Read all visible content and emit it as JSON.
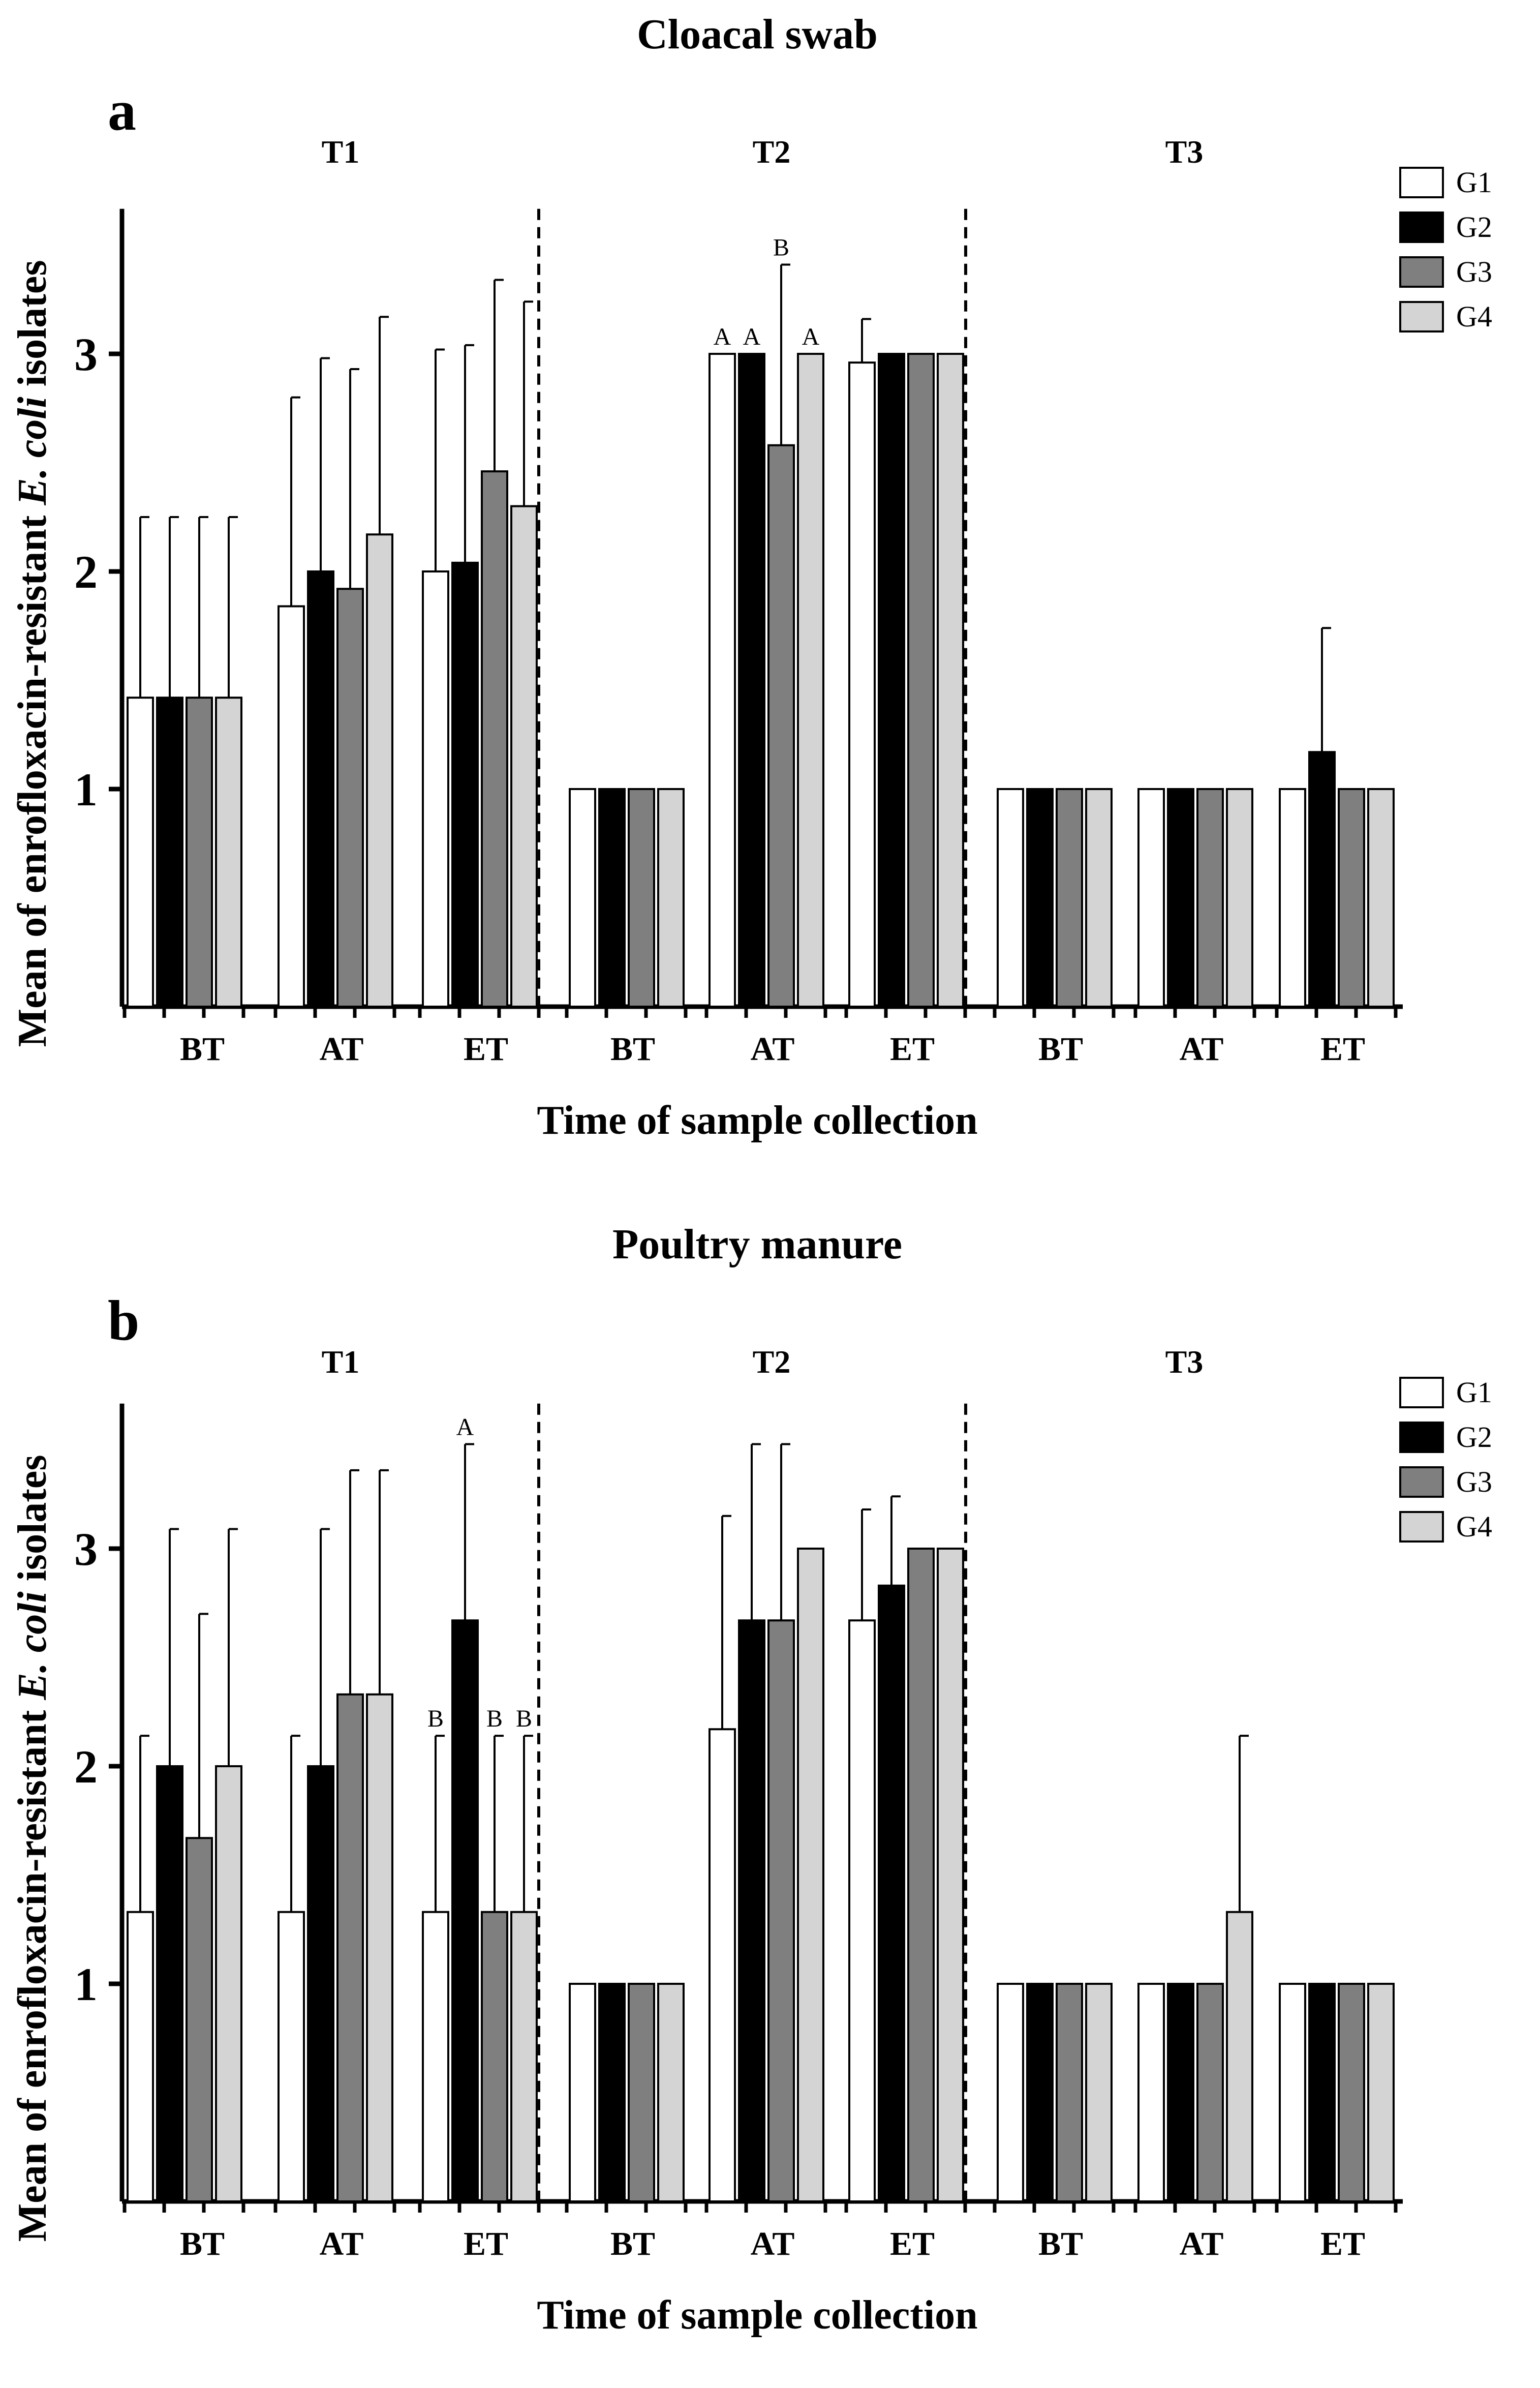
{
  "figure": {
    "ylabel_prefix": "Mean of enrofloxacin-resistant ",
    "ylabel_italic": "E. coli",
    "ylabel_suffix": " isolates"
  },
  "chart_data": [
    {
      "type": "bar",
      "letter": "a",
      "title": "Cloacal swab",
      "xlabel": "Time of sample collection",
      "ylabel": "Mean of enrofloxacin-resistant E. coli isolates",
      "ylim": [
        0,
        3.9
      ],
      "yticks": [
        1,
        2,
        3
      ],
      "grid": false,
      "legend_position": "top-right",
      "trials": [
        "T1",
        "T2",
        "T3"
      ],
      "categories": [
        "BT",
        "AT",
        "ET",
        "BT",
        "AT",
        "ET",
        "BT",
        "AT",
        "ET"
      ],
      "series": [
        {
          "name": "G1",
          "color": "#ffffff",
          "values": [
            1.42,
            1.84,
            2.0,
            1.0,
            3.0,
            2.96,
            1.0,
            1.0,
            1.0
          ],
          "errors": [
            0.83,
            0.96,
            1.02,
            0,
            0,
            0.2,
            0,
            0,
            0
          ],
          "labels": [
            "",
            "",
            "",
            "",
            "A",
            "",
            "",
            "",
            ""
          ]
        },
        {
          "name": "G2",
          "color": "#000000",
          "values": [
            1.42,
            2.0,
            2.04,
            1.0,
            3.0,
            3.0,
            1.0,
            1.0,
            1.17
          ],
          "errors": [
            0.83,
            0.98,
            1.0,
            0,
            0,
            0,
            0,
            0,
            0.57
          ],
          "labels": [
            "",
            "",
            "",
            "",
            "A",
            "",
            "",
            "",
            ""
          ]
        },
        {
          "name": "G3",
          "color": "#7f7f7f",
          "values": [
            1.42,
            1.92,
            2.46,
            1.0,
            2.58,
            3.0,
            1.0,
            1.0,
            1.0
          ],
          "errors": [
            0.83,
            1.01,
            0.88,
            0,
            0.83,
            0,
            0,
            0,
            0
          ],
          "labels": [
            "",
            "",
            "",
            "",
            "B",
            "",
            "",
            "",
            ""
          ]
        },
        {
          "name": "G4",
          "color": "#d4d4d4",
          "values": [
            1.42,
            2.17,
            2.3,
            1.0,
            3.0,
            3.0,
            1.0,
            1.0,
            1.0
          ],
          "errors": [
            0.83,
            1.0,
            0.94,
            0,
            0,
            0,
            0,
            0,
            0
          ],
          "labels": [
            "",
            "",
            "",
            "",
            "A",
            "",
            "",
            "",
            ""
          ]
        }
      ]
    },
    {
      "type": "bar",
      "letter": "b",
      "title": "Poultry manure",
      "xlabel": "Time of sample collection",
      "ylabel": "Mean of enrofloxacin-resistant E. coli isolates",
      "ylim": [
        0,
        3.9
      ],
      "yticks": [
        1,
        2,
        3
      ],
      "grid": false,
      "legend_position": "top-right",
      "trials": [
        "T1",
        "T2",
        "T3"
      ],
      "categories": [
        "BT",
        "AT",
        "ET",
        "BT",
        "AT",
        "ET",
        "BT",
        "AT",
        "ET"
      ],
      "series": [
        {
          "name": "G1",
          "color": "#ffffff",
          "values": [
            1.33,
            1.33,
            1.33,
            1.0,
            2.17,
            2.67,
            1.0,
            1.0,
            1.0
          ],
          "errors": [
            0.81,
            0.81,
            0.81,
            0,
            0.98,
            0.51,
            0,
            0,
            0
          ],
          "labels": [
            "",
            "",
            "B",
            "",
            "",
            "",
            "",
            "",
            ""
          ]
        },
        {
          "name": "G2",
          "color": "#000000",
          "values": [
            2.0,
            2.0,
            2.67,
            1.0,
            2.67,
            2.83,
            1.0,
            1.0,
            1.0
          ],
          "errors": [
            1.09,
            1.09,
            0.81,
            0,
            0.81,
            0.41,
            0,
            0,
            0
          ],
          "labels": [
            "",
            "",
            "A",
            "",
            "",
            "",
            "",
            "",
            ""
          ]
        },
        {
          "name": "G3",
          "color": "#7f7f7f",
          "values": [
            1.67,
            2.33,
            1.33,
            1.0,
            2.67,
            3.0,
            1.0,
            1.0,
            1.0
          ],
          "errors": [
            1.03,
            1.03,
            0.81,
            0,
            0.81,
            0,
            0,
            0,
            0
          ],
          "labels": [
            "",
            "",
            "B",
            "",
            "",
            "",
            "",
            "",
            ""
          ]
        },
        {
          "name": "G4",
          "color": "#d4d4d4",
          "values": [
            2.0,
            2.33,
            1.33,
            1.0,
            3.0,
            3.0,
            1.0,
            1.33,
            1.0
          ],
          "errors": [
            1.09,
            1.03,
            0.81,
            0,
            0,
            0,
            0,
            0.81,
            0
          ],
          "labels": [
            "",
            "",
            "B",
            "",
            "",
            "",
            "",
            "",
            ""
          ]
        }
      ]
    }
  ]
}
